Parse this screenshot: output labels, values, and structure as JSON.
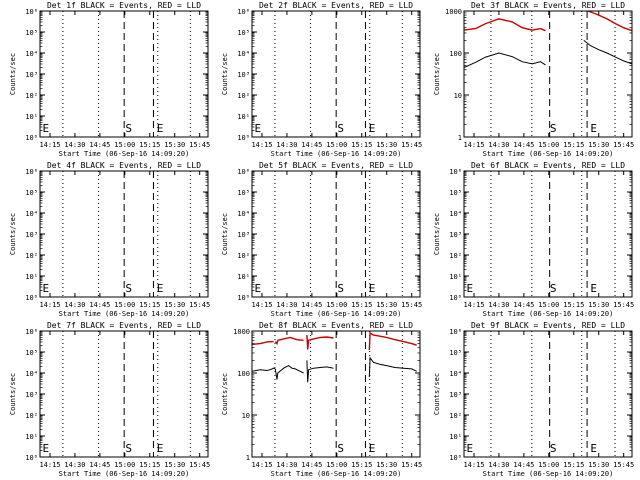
{
  "colors": {
    "events": "#000000",
    "lld": "#cc0000",
    "axis": "#000000"
  },
  "shared": {
    "xlabel": "Start Time (06-Sep-16 14:09:20)",
    "ylabel": "Counts/sec",
    "x_ticks": [
      "14:15",
      "14:30",
      "14:45",
      "15:00",
      "15:15",
      "15:30",
      "15:45"
    ],
    "x_ticks_min": [
      15,
      30,
      45,
      60,
      75,
      90,
      105
    ],
    "xlim_min": [
      9,
      110
    ],
    "y_ticks_exp": [
      "10⁰",
      "10¹",
      "10²",
      "10³",
      "10⁴",
      "10⁵",
      "10⁶"
    ],
    "y_ticks_num": [
      "1",
      "10",
      "100",
      "1000"
    ],
    "marker_letters": [
      "E",
      "S",
      "E"
    ]
  },
  "chart_data": [
    {
      "type": "line",
      "title": "Det 1f BLACK = Events, RED = LLD",
      "y_scale": "log",
      "ylim": [
        1,
        1000000
      ],
      "series": [],
      "dashed_lines_min": [
        59.6,
        77.2
      ],
      "dotted_lines_min": [
        22.8,
        44.2,
        79.8,
        99.4
      ],
      "markers": [
        [
          "E",
          10.5
        ],
        [
          "S",
          60.3
        ],
        [
          "E",
          79.2
        ]
      ]
    },
    {
      "type": "line",
      "title": "Det 2f BLACK = Events, RED = LLD",
      "y_scale": "log",
      "ylim": [
        1,
        1000000
      ],
      "series": [],
      "dashed_lines_min": [
        59.6,
        77.2
      ],
      "dotted_lines_min": [
        22.8,
        44.2,
        79.8,
        99.4
      ],
      "markers": [
        [
          "E",
          10.5
        ],
        [
          "S",
          60.3
        ],
        [
          "E",
          79.2
        ]
      ]
    },
    {
      "type": "line",
      "title": "Det 3f BLACK = Events, RED = LLD",
      "y_scale": "log",
      "ylim": [
        1,
        1000
      ],
      "series": [
        {
          "role": "events",
          "x": [
            9,
            16,
            22,
            30,
            38,
            44,
            50,
            55,
            58
          ],
          "y": [
            45,
            60,
            80,
            100,
            82,
            62,
            55,
            62,
            52
          ]
        },
        {
          "role": "events",
          "x": [
            59.5,
            60,
            62,
            65,
            67
          ],
          "y": [
            1050,
            1100,
            1150,
            1200,
            1100
          ]
        },
        {
          "role": "events",
          "x": [
            81,
            85,
            90,
            95,
            100,
            105,
            110
          ],
          "y": [
            200,
            150,
            120,
            100,
            80,
            65,
            55
          ]
        },
        {
          "role": "lld",
          "x": [
            9,
            16,
            22,
            30,
            38,
            44,
            50,
            55,
            58
          ],
          "y": [
            350,
            380,
            500,
            650,
            550,
            400,
            350,
            380,
            340
          ]
        },
        {
          "role": "lld",
          "x": [
            59.5,
            60,
            62,
            66,
            70,
            75,
            77
          ],
          "y": [
            1000,
            1200,
            1300,
            1300,
            1200,
            1100,
            1050
          ]
        },
        {
          "role": "lld",
          "x": [
            81,
            85,
            90,
            95,
            100,
            105,
            110
          ],
          "y": [
            1100,
            950,
            800,
            650,
            500,
            400,
            340
          ]
        }
      ],
      "dashed_lines_min": [
        60.5,
        83
      ],
      "dotted_lines_min": [
        25.2,
        49.8,
        79.8,
        99.8
      ],
      "markers": [
        [
          "S",
          60.6
        ],
        [
          "E",
          85
        ]
      ]
    },
    {
      "type": "line",
      "title": "Det 4f BLACK = Events, RED = LLD",
      "y_scale": "log",
      "ylim": [
        1,
        1000000
      ],
      "series": [],
      "dashed_lines_min": [
        59.6,
        77.2
      ],
      "dotted_lines_min": [
        22.8,
        44.2,
        79.8,
        99.4
      ],
      "markers": [
        [
          "E",
          10.5
        ],
        [
          "S",
          60.3
        ],
        [
          "E",
          79.2
        ]
      ]
    },
    {
      "type": "line",
      "title": "Det 5f BLACK = Events, RED = LLD",
      "y_scale": "log",
      "ylim": [
        1,
        1000000
      ],
      "series": [],
      "dashed_lines_min": [
        59.6,
        77.2
      ],
      "dotted_lines_min": [
        22.8,
        44.2,
        79.8,
        99.4
      ],
      "markers": [
        [
          "E",
          10.5
        ],
        [
          "S",
          60.3
        ],
        [
          "E",
          79.2
        ]
      ]
    },
    {
      "type": "line",
      "title": "Det 6f BLACK = Events, RED = LLD",
      "y_scale": "log",
      "ylim": [
        1,
        1000000
      ],
      "series": [],
      "dashed_lines_min": [
        60.5,
        83
      ],
      "dotted_lines_min": [
        25.2,
        49.8,
        79.8,
        99.8
      ],
      "markers": [
        [
          "E",
          10.5
        ],
        [
          "S",
          60.6
        ],
        [
          "E",
          85
        ]
      ]
    },
    {
      "type": "line",
      "title": "Det 7f BLACK = Events, RED = LLD",
      "y_scale": "log",
      "ylim": [
        1,
        1000000
      ],
      "series": [],
      "dashed_lines_min": [
        59.6,
        77.2
      ],
      "dotted_lines_min": [
        22.8,
        44.2,
        79.8,
        99.4
      ],
      "markers": [
        [
          "E",
          10.5
        ],
        [
          "S",
          60.3
        ],
        [
          "E",
          79.2
        ]
      ]
    },
    {
      "type": "line",
      "title": "Det 8f BLACK = Events, RED = LLD",
      "y_scale": "log",
      "ylim": [
        1,
        1000
      ],
      "series": [
        {
          "role": "events",
          "x": [
            9,
            14,
            18,
            20,
            22,
            23
          ],
          "y": [
            110,
            120,
            115,
            120,
            130,
            125
          ]
        },
        {
          "role": "events",
          "x": [
            23,
            24,
            24.5,
            28,
            31,
            33,
            35,
            38,
            40
          ],
          "y": [
            125,
            70,
            100,
            130,
            150,
            130,
            125,
            110,
            100
          ]
        },
        {
          "role": "events",
          "x": [
            42,
            42.5,
            43,
            46,
            50,
            54,
            58
          ],
          "y": [
            200,
            60,
            120,
            130,
            135,
            140,
            130
          ]
        },
        {
          "role": "events",
          "x": [
            60,
            62,
            64,
            65
          ],
          "y": [
            1100,
            1150,
            1100,
            1050
          ]
        },
        {
          "role": "events",
          "x": [
            79.5,
            80,
            82,
            86,
            90,
            95,
            100,
            105,
            108
          ],
          "y": [
            80,
            230,
            180,
            160,
            150,
            135,
            130,
            125,
            110
          ]
        },
        {
          "role": "lld",
          "x": [
            9,
            14,
            18,
            22
          ],
          "y": [
            480,
            500,
            550,
            560
          ]
        },
        {
          "role": "lld",
          "x": [
            23,
            24,
            24.5,
            28,
            32,
            36,
            40
          ],
          "y": [
            560,
            500,
            600,
            650,
            700,
            620,
            600
          ]
        },
        {
          "role": "lld",
          "x": [
            42,
            42.5,
            43,
            46,
            50,
            54,
            58
          ],
          "y": [
            800,
            360,
            600,
            650,
            700,
            720,
            680
          ]
        },
        {
          "role": "lld",
          "x": [
            60,
            62,
            64,
            65
          ],
          "y": [
            1000,
            1050,
            1050,
            1000
          ]
        },
        {
          "role": "lld",
          "x": [
            79.5,
            80,
            82,
            86,
            90,
            95,
            100,
            105,
            108
          ],
          "y": [
            350,
            900,
            800,
            750,
            700,
            620,
            560,
            500,
            460
          ]
        }
      ],
      "dashed_lines_min": [
        59.6,
        77.2
      ],
      "dotted_lines_min": [
        22.8,
        44.2,
        79.8,
        99.4
      ],
      "markers": [
        [
          "S",
          60.3
        ],
        [
          "E",
          79.2
        ]
      ]
    },
    {
      "type": "line",
      "title": "Det 9f BLACK = Events, RED = LLD",
      "y_scale": "log",
      "ylim": [
        1,
        1000000
      ],
      "series": [],
      "dashed_lines_min": [
        60.5,
        83
      ],
      "dotted_lines_min": [
        25.2,
        49.8,
        79.8,
        99.8
      ],
      "markers": [
        [
          "E",
          10.5
        ],
        [
          "S",
          60.6
        ],
        [
          "E",
          85
        ]
      ]
    }
  ]
}
